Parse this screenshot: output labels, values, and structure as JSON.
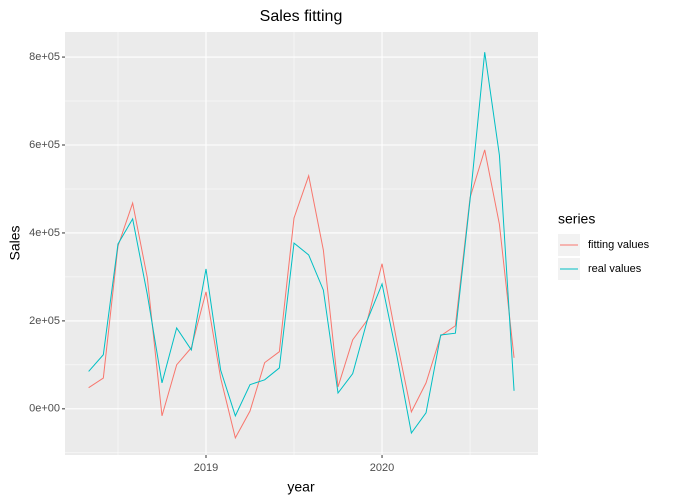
{
  "chart_data": {
    "type": "line",
    "title": "Sales fitting",
    "x_label": "year",
    "y_label": "Sales",
    "x": [
      2018.3333,
      2018.4167,
      2018.5,
      2018.5833,
      2018.6667,
      2018.75,
      2018.8333,
      2018.9167,
      2019.0,
      2019.0833,
      2019.1667,
      2019.25,
      2019.3333,
      2019.4167,
      2019.5,
      2019.5833,
      2019.6667,
      2019.75,
      2019.8333,
      2019.9167,
      2020.0,
      2020.0833,
      2020.1667,
      2020.25,
      2020.3333,
      2020.4167,
      2020.5,
      2020.5833,
      2020.6667,
      2020.75
    ],
    "series": [
      {
        "name": "fitting values",
        "color": "#F8766D",
        "values": [
          48000,
          70000,
          370000,
          468000,
          298000,
          -16000,
          100000,
          139000,
          266000,
          70000,
          -66000,
          -5000,
          105000,
          130000,
          434000,
          530000,
          361000,
          50000,
          157000,
          202000,
          330000,
          155000,
          -7000,
          59000,
          166000,
          189000,
          480000,
          589000,
          420000,
          116000
        ]
      },
      {
        "name": "real values",
        "color": "#00BFC4",
        "values": [
          85000,
          123000,
          375000,
          432000,
          260000,
          59000,
          184000,
          134000,
          318000,
          88000,
          -16000,
          55000,
          66000,
          93000,
          377000,
          350000,
          270000,
          36000,
          80000,
          202000,
          284000,
          123000,
          -55000,
          -9000,
          168000,
          172000,
          475000,
          811000,
          577000,
          41000
        ]
      }
    ],
    "legend_title": "series",
    "legend": "right",
    "grid": true,
    "xlim": [
      2018.199,
      2020.886
    ],
    "xticks": [
      2019,
      2020
    ],
    "ylim": [
      -105000,
      857000
    ],
    "yticks": [
      {
        "value": 0,
        "label": "0e+00"
      },
      {
        "value": 200000,
        "label": "2e+05"
      },
      {
        "value": 400000,
        "label": "4e+05"
      },
      {
        "value": 600000,
        "label": "6e+05"
      },
      {
        "value": 800000,
        "label": "8e+05"
      }
    ]
  }
}
